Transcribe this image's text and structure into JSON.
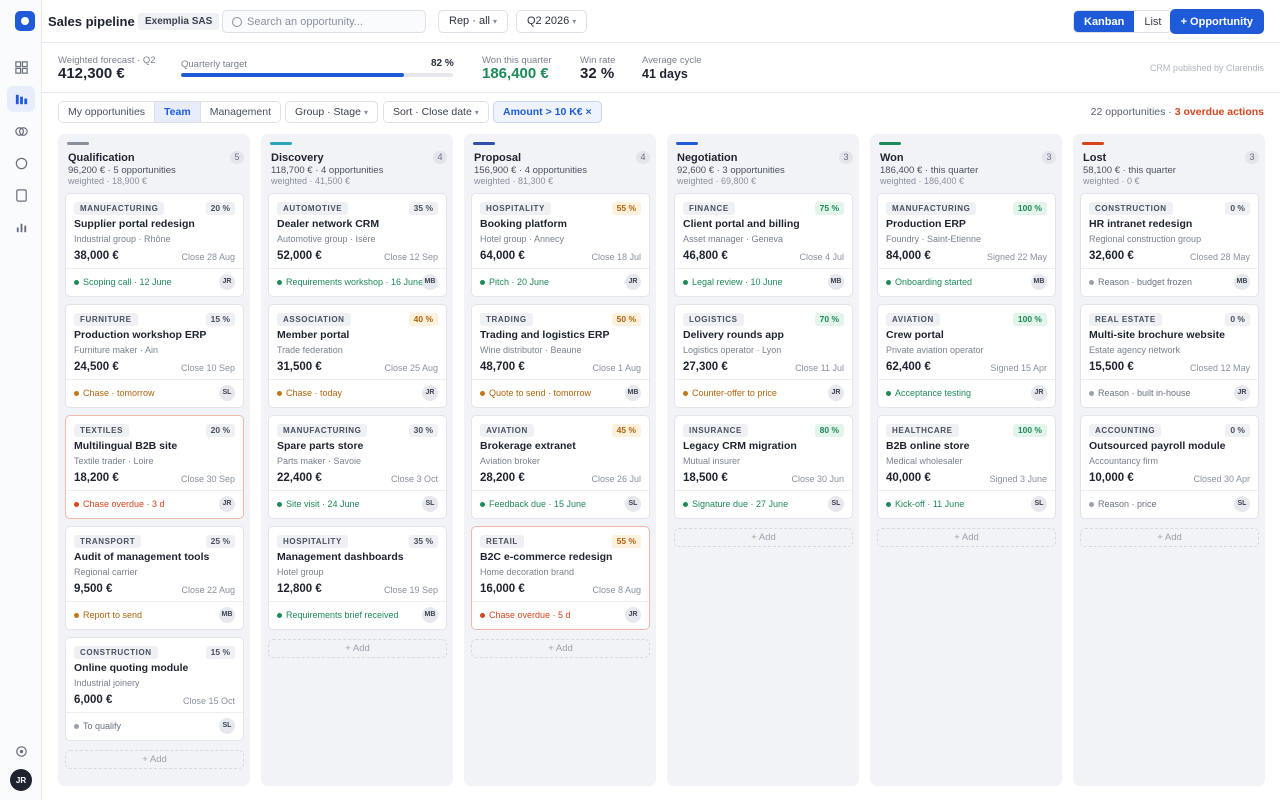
{
  "app": {
    "title": "Sales pipeline",
    "workspace": "Exemplia SAS",
    "user_initials": "JR",
    "accent": "#1f5bd8"
  },
  "search": {
    "placeholder": "Search an opportunity..."
  },
  "rep_filter": "Rep · all",
  "period_filter": "Q2 2026",
  "views": {
    "kanban": "Kanban",
    "list": "List",
    "active": "kanban"
  },
  "new_button": "+ Opportunity",
  "sidebar_icons": [
    "grid-icon",
    "pipeline-icon",
    "contacts-icon",
    "activity-icon",
    "document-icon",
    "reports-icon",
    "settings-icon"
  ],
  "kpis": {
    "weighted_label": "Weighted forecast · Q2",
    "weighted_value": "412,300 €",
    "target_label": "Quarterly target",
    "target_pct": "82 %",
    "target_fraction": 0.82,
    "won_label": "Won this quarter",
    "won_value": "186,400 €",
    "winrate_label": "Win rate",
    "winrate_value": "32 %",
    "cycle_label": "Average cycle",
    "cycle_value": "41 days",
    "credit": "CRM published by Clarendis"
  },
  "filters": {
    "scope": [
      "My opportunities",
      "Team",
      "Management"
    ],
    "scope_active": 1,
    "group": "Group · Stage",
    "sort": "Sort · Close date",
    "amount": "Amount > 10 K€ ×",
    "summary_count": "22 opportunities · ",
    "summary_overdue": "3 overdue actions"
  },
  "add_label": "+ Add",
  "columns": [
    {
      "title": "Qualification",
      "count": "5",
      "color": "#8a8f9c",
      "line1": "96,200 € · 5 opportunities",
      "line2": "weighted · 18,900 €",
      "cards": [
        {
          "tag": "MANUFACTURING",
          "prob": "20 %",
          "tone": "grey",
          "title": "Supplier portal redesign",
          "client": "Industrial group · Rhône",
          "amount": "38,000 €",
          "close": "Close 28 Aug",
          "next": "Scoping call · 12 June",
          "next_tone": "green",
          "rep": "JR",
          "overdue": false
        },
        {
          "tag": "FURNITURE",
          "prob": "15 %",
          "tone": "grey",
          "title": "Production workshop ERP",
          "client": "Furniture maker · Ain",
          "amount": "24,500 €",
          "close": "Close 10 Sep",
          "next": "Chase · tomorrow",
          "next_tone": "orange",
          "rep": "SL",
          "overdue": false
        },
        {
          "tag": "TEXTILES",
          "prob": "20 %",
          "tone": "grey",
          "title": "Multilingual B2B site",
          "client": "Textile trader · Loire",
          "amount": "18,200 €",
          "close": "Close 30 Sep",
          "next": "Chase overdue · 3 d",
          "next_tone": "red",
          "rep": "JR",
          "overdue": true
        },
        {
          "tag": "TRANSPORT",
          "prob": "25 %",
          "tone": "grey",
          "title": "Audit of management tools",
          "client": "Regional carrier",
          "amount": "9,500 €",
          "close": "Close 22 Aug",
          "next": "Report to send",
          "next_tone": "orange",
          "rep": "MB",
          "overdue": false
        },
        {
          "tag": "CONSTRUCTION",
          "prob": "15 %",
          "tone": "grey",
          "title": "Online quoting module",
          "client": "Industrial joinery",
          "amount": "6,000 €",
          "close": "Close 15 Oct",
          "next": "To qualify",
          "next_tone": "grey",
          "rep": "SL",
          "overdue": false
        }
      ]
    },
    {
      "title": "Discovery",
      "count": "4",
      "color": "#2aa6b8",
      "line1": "118,700 € · 4 opportunities",
      "line2": "weighted · 41,500 €",
      "cards": [
        {
          "tag": "AUTOMOTIVE",
          "prob": "35 %",
          "tone": "grey",
          "title": "Dealer network CRM",
          "client": "Automotive group · Isère",
          "amount": "52,000 €",
          "close": "Close 12 Sep",
          "next": "Requirements workshop · 16 June",
          "next_tone": "green",
          "rep": "MB",
          "overdue": false
        },
        {
          "tag": "ASSOCIATION",
          "prob": "40 %",
          "tone": "orange",
          "title": "Member portal",
          "client": "Trade federation",
          "amount": "31,500 €",
          "close": "Close 25 Aug",
          "next": "Chase · today",
          "next_tone": "orange",
          "rep": "JR",
          "overdue": false
        },
        {
          "tag": "MANUFACTURING",
          "prob": "30 %",
          "tone": "grey",
          "title": "Spare parts store",
          "client": "Parts maker · Savoie",
          "amount": "22,400 €",
          "close": "Close 3 Oct",
          "next": "Site visit · 24 June",
          "next_tone": "green",
          "rep": "SL",
          "overdue": false
        },
        {
          "tag": "HOSPITALITY",
          "prob": "35 %",
          "tone": "grey",
          "title": "Management dashboards",
          "client": "Hotel group",
          "amount": "12,800 €",
          "close": "Close 19 Sep",
          "next": "Requirements brief received",
          "next_tone": "green",
          "rep": "MB",
          "overdue": false
        }
      ]
    },
    {
      "title": "Proposal",
      "count": "4",
      "color": "#2f4fa8",
      "line1": "156,900 € · 4 opportunities",
      "line2": "weighted · 81,300 €",
      "cards": [
        {
          "tag": "HOSPITALITY",
          "prob": "55 %",
          "tone": "orange",
          "title": "Booking platform",
          "client": "Hotel group · Annecy",
          "amount": "64,000 €",
          "close": "Close 18 Jul",
          "next": "Pitch · 20 June",
          "next_tone": "green",
          "rep": "JR",
          "overdue": false
        },
        {
          "tag": "TRADING",
          "prob": "50 %",
          "tone": "orange",
          "title": "Trading and logistics ERP",
          "client": "Wine distributor · Beaune",
          "amount": "48,700 €",
          "close": "Close 1 Aug",
          "next": "Quote to send · tomorrow",
          "next_tone": "orange",
          "rep": "MB",
          "overdue": false
        },
        {
          "tag": "AVIATION",
          "prob": "45 %",
          "tone": "orange",
          "title": "Brokerage extranet",
          "client": "Aviation broker",
          "amount": "28,200 €",
          "close": "Close 26 Jul",
          "next": "Feedback due · 15 June",
          "next_tone": "green",
          "rep": "SL",
          "overdue": false
        },
        {
          "tag": "RETAIL",
          "prob": "55 %",
          "tone": "orange",
          "title": "B2C e-commerce redesign",
          "client": "Home decoration brand",
          "amount": "16,000 €",
          "close": "Close 8 Aug",
          "next": "Chase overdue · 5 d",
          "next_tone": "red",
          "rep": "JR",
          "overdue": true
        }
      ]
    },
    {
      "title": "Negotiation",
      "count": "3",
      "color": "#1f5bd8",
      "line1": "92,600 € · 3 opportunities",
      "line2": "weighted · 69,800 €",
      "cards": [
        {
          "tag": "FINANCE",
          "prob": "75 %",
          "tone": "green",
          "title": "Client portal and billing",
          "client": "Asset manager · Geneva",
          "amount": "46,800 €",
          "close": "Close 4 Jul",
          "next": "Legal review · 10 June",
          "next_tone": "green",
          "rep": "MB",
          "overdue": false
        },
        {
          "tag": "LOGISTICS",
          "prob": "70 %",
          "tone": "green",
          "title": "Delivery rounds app",
          "client": "Logistics operator · Lyon",
          "amount": "27,300 €",
          "close": "Close 11 Jul",
          "next": "Counter-offer to price",
          "next_tone": "orange",
          "rep": "JR",
          "overdue": false
        },
        {
          "tag": "INSURANCE",
          "prob": "80 %",
          "tone": "green",
          "title": "Legacy CRM migration",
          "client": "Mutual insurer",
          "amount": "18,500 €",
          "close": "Close 30 Jun",
          "next": "Signature due · 27 June",
          "next_tone": "green",
          "rep": "SL",
          "overdue": false
        }
      ]
    },
    {
      "title": "Won",
      "count": "3",
      "color": "#1e8a5a",
      "line1": "186,400 € · this quarter",
      "line2": "weighted · 186,400 €",
      "cards": [
        {
          "tag": "MANUFACTURING",
          "prob": "100 %",
          "tone": "green",
          "title": "Production ERP",
          "client": "Foundry · Saint-Etienne",
          "amount": "84,000 €",
          "close": "Signed 22 May",
          "next": "Onboarding started",
          "next_tone": "green",
          "rep": "MB",
          "overdue": false
        },
        {
          "tag": "AVIATION",
          "prob": "100 %",
          "tone": "green",
          "title": "Crew portal",
          "client": "Private aviation operator",
          "amount": "62,400 €",
          "close": "Signed 15 Apr",
          "next": "Acceptance testing",
          "next_tone": "green",
          "rep": "JR",
          "overdue": false
        },
        {
          "tag": "HEALTHCARE",
          "prob": "100 %",
          "tone": "green",
          "title": "B2B online store",
          "client": "Medical wholesaler",
          "amount": "40,000 €",
          "close": "Signed 3 June",
          "next": "Kick-off · 11 June",
          "next_tone": "green",
          "rep": "SL",
          "overdue": false
        }
      ]
    },
    {
      "title": "Lost",
      "count": "3",
      "color": "#d6451c",
      "line1": "58,100 € · this quarter",
      "line2": "weighted · 0 €",
      "cards": [
        {
          "tag": "CONSTRUCTION",
          "prob": "0 %",
          "tone": "grey",
          "title": "HR intranet redesign",
          "client": "Regional construction group",
          "amount": "32,600 €",
          "close": "Closed 28 May",
          "next": "Reason · budget frozen",
          "next_tone": "grey",
          "rep": "MB",
          "overdue": false
        },
        {
          "tag": "REAL ESTATE",
          "prob": "0 %",
          "tone": "grey",
          "title": "Multi-site brochure website",
          "client": "Estate agency network",
          "amount": "15,500 €",
          "close": "Closed 12 May",
          "next": "Reason · built in-house",
          "next_tone": "grey",
          "rep": "JR",
          "overdue": false
        },
        {
          "tag": "ACCOUNTING",
          "prob": "0 %",
          "tone": "grey",
          "title": "Outsourced payroll module",
          "client": "Accountancy firm",
          "amount": "10,000 €",
          "close": "Closed 30 Apr",
          "next": "Reason · price",
          "next_tone": "grey",
          "rep": "SL",
          "overdue": false
        }
      ]
    }
  ]
}
